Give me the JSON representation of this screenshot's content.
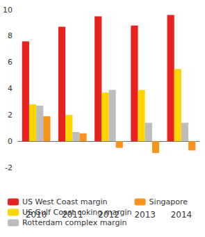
{
  "chart_data": {
    "type": "bar",
    "categories": [
      "2010",
      "2011",
      "2012",
      "2013",
      "2014"
    ],
    "series": [
      {
        "name": "US West Coast margin",
        "color": "#e8231f",
        "values": [
          7.6,
          8.7,
          9.5,
          8.8,
          9.6
        ]
      },
      {
        "name": "US Gulf Coast coking margin",
        "color": "#ffd500",
        "values": [
          2.8,
          2.0,
          3.7,
          3.9,
          5.5
        ]
      },
      {
        "name": "Rotterdam complex margin",
        "color": "#bdbdbd",
        "values": [
          2.7,
          0.7,
          3.9,
          1.4,
          1.4
        ]
      },
      {
        "name": "Singapore",
        "color": "#f7941d",
        "values": [
          1.9,
          0.6,
          -0.5,
          -0.9,
          -0.7
        ]
      }
    ],
    "ylim": [
      -2,
      10
    ],
    "yticks": [
      -2,
      0,
      2,
      4,
      6,
      8,
      10
    ],
    "grid": false,
    "legend": "bottom"
  }
}
